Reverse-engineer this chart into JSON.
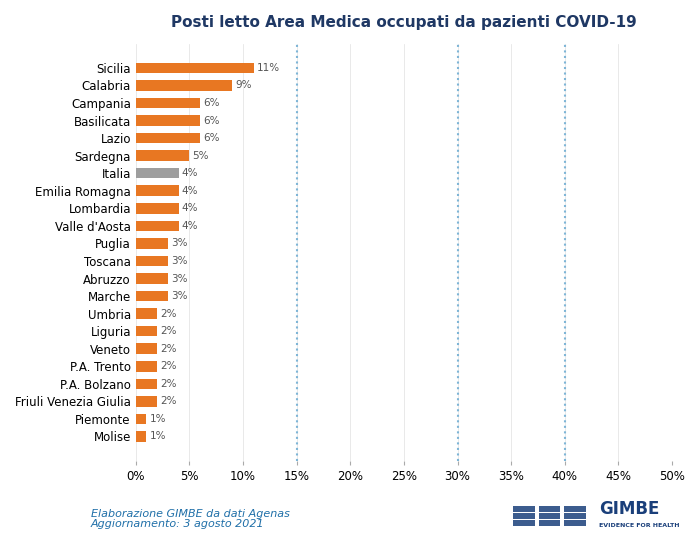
{
  "title": "Posti letto Area Medica occupati da pazienti COVID-19",
  "categories": [
    "Sicilia",
    "Calabria",
    "Campania",
    "Basilicata",
    "Lazio",
    "Sardegna",
    "Italia",
    "Emilia Romagna",
    "Lombardia",
    "Valle d'Aosta",
    "Puglia",
    "Toscana",
    "Abruzzo",
    "Marche",
    "Umbria",
    "Liguria",
    "Veneto",
    "P.A. Trento",
    "P.A. Bolzano",
    "Friuli Venezia Giulia",
    "Piemonte",
    "Molise"
  ],
  "values": [
    11,
    9,
    6,
    6,
    6,
    5,
    4,
    4,
    4,
    4,
    3,
    3,
    3,
    3,
    2,
    2,
    2,
    2,
    2,
    2,
    1,
    1
  ],
  "bar_colors": [
    "#E87722",
    "#E87722",
    "#E87722",
    "#E87722",
    "#E87722",
    "#E87722",
    "#9E9E9E",
    "#E87722",
    "#E87722",
    "#E87722",
    "#E87722",
    "#E87722",
    "#E87722",
    "#E87722",
    "#E87722",
    "#E87722",
    "#E87722",
    "#E87722",
    "#E87722",
    "#E87722",
    "#E87722",
    "#E87722"
  ],
  "xlim": [
    0,
    50
  ],
  "xticks": [
    0,
    5,
    10,
    15,
    20,
    25,
    30,
    35,
    40,
    45,
    50
  ],
  "xticklabels": [
    "0%",
    "5%",
    "10%",
    "15%",
    "20%",
    "25%",
    "30%",
    "35%",
    "40%",
    "45%",
    "50%"
  ],
  "dashed_lines": [
    15,
    30,
    40
  ],
  "footnote_line1": "Elaborazione GIMBE da dati Agenas",
  "footnote_line2": "Aggiornamento: 3 agosto 2021",
  "background_color": "#FFFFFF",
  "bar_height": 0.6,
  "title_color": "#1F3864",
  "footnote_color": "#1F6FA8",
  "label_color": "#E87722"
}
